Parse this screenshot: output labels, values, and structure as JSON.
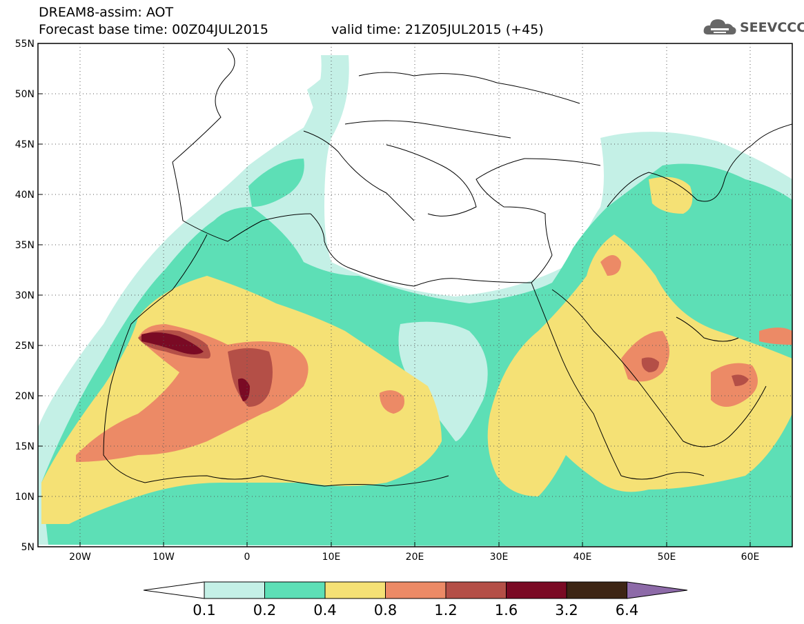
{
  "header": {
    "line1": "DREAM8-assim: AOT",
    "line2": "Forecast base time: 00Z04JUL2015",
    "line3": "valid time: 21Z05JUL2015 (+45)"
  },
  "logo": {
    "text": "SEEVCCC",
    "icon": "cloud-icon"
  },
  "map": {
    "lat_labels": [
      "55N",
      "50N",
      "45N",
      "40N",
      "35N",
      "30N",
      "25N",
      "20N",
      "15N",
      "10N",
      "5N"
    ],
    "lon_labels": [
      "20W",
      "10W",
      "0",
      "10E",
      "20E",
      "30E",
      "40E",
      "50E",
      "60E"
    ],
    "lat_range": [
      5,
      55
    ],
    "lon_range": [
      -25,
      65
    ],
    "grid": "dotted"
  },
  "colorbar": {
    "labels": [
      "0.1",
      "0.2",
      "0.4",
      "0.8",
      "1.2",
      "1.6",
      "3.2",
      "6.4"
    ],
    "colors": [
      "#ffffff",
      "#c4f0e6",
      "#5ddfb6",
      "#f5e175",
      "#ec8a66",
      "#b44f47",
      "#7a0a24",
      "#3d2514",
      "#8d6aa8"
    ]
  }
}
